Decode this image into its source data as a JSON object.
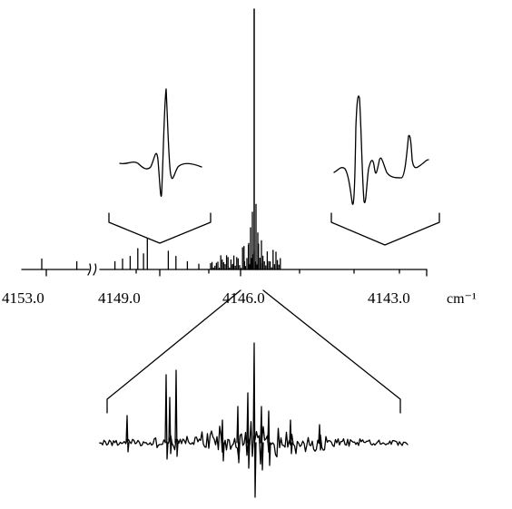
{
  "chart_data": {
    "type": "line",
    "title": "",
    "xlabel": "",
    "ylabel": "",
    "x_unit": "cm⁻¹",
    "x_axis_reversed": true,
    "x_axis_break": true,
    "xlim": [
      4143.0,
      4153.0
    ],
    "tick_labels": [
      "4153.0",
      "4149.0",
      "4146.0",
      "4143.0"
    ],
    "tick_values": [
      4153.0,
      4149.0,
      4146.0,
      4143.0
    ],
    "major_peak": {
      "x": 4146.1,
      "relative_intensity": 1.0
    },
    "main_spectrum_peaks": [
      {
        "x": 4152.7,
        "y": 0.04
      },
      {
        "x": 4148.2,
        "y": 0.03
      },
      {
        "x": 4147.2,
        "y": 0.03
      },
      {
        "x": 4147.0,
        "y": 0.04
      },
      {
        "x": 4146.8,
        "y": 0.05
      },
      {
        "x": 4146.6,
        "y": 0.08
      },
      {
        "x": 4146.45,
        "y": 0.06
      },
      {
        "x": 4146.35,
        "y": 0.12
      },
      {
        "x": 4146.25,
        "y": 0.1
      },
      {
        "x": 4146.2,
        "y": 0.16
      },
      {
        "x": 4146.15,
        "y": 0.22
      },
      {
        "x": 4146.1,
        "y": 1.0
      },
      {
        "x": 4146.05,
        "y": 0.25
      },
      {
        "x": 4146.0,
        "y": 0.14
      },
      {
        "x": 4145.9,
        "y": 0.11
      },
      {
        "x": 4145.8,
        "y": 0.07
      },
      {
        "x": 4145.6,
        "y": 0.05
      },
      {
        "x": 4145.3,
        "y": 0.03
      },
      {
        "x": 4145.0,
        "y": 0.02
      },
      {
        "x": 4144.1,
        "y": 0.02
      },
      {
        "x": 4143.8,
        "y": 0.03
      }
    ],
    "insets": [
      {
        "name": "",
        "x_center": 4148.2
      },
      {
        "name": "",
        "x_center": 4143.8
      },
      {
        "name": "",
        "x_range": [
          4145.0,
          4146.5
        ]
      }
    ],
    "grid": false,
    "legend": "none"
  }
}
